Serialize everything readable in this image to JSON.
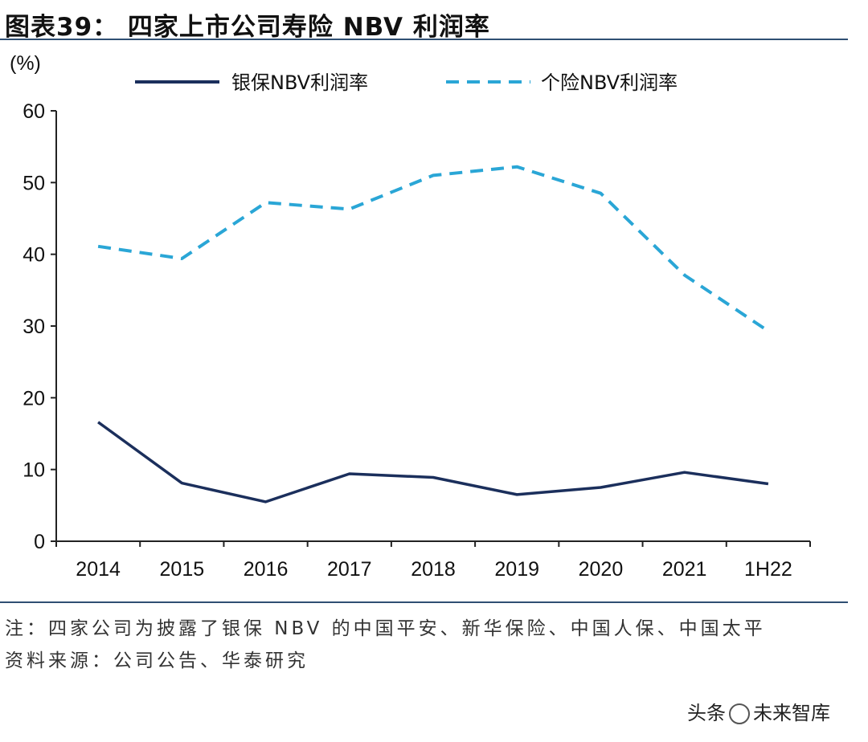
{
  "header": {
    "title": "图表39： 四家上市公司寿险 NBV 利润率"
  },
  "chart_data": {
    "type": "line",
    "title": "四家上市公司寿险 NBV 利润率",
    "ylabel": "(%)",
    "xlabel": "",
    "categories": [
      "2014",
      "2015",
      "2016",
      "2017",
      "2018",
      "2019",
      "2020",
      "2021",
      "1H22"
    ],
    "ylim": [
      0,
      60
    ],
    "yticks": [
      "0",
      "10",
      "20",
      "30",
      "40",
      "50",
      "60"
    ],
    "grid": false,
    "legend_position": "top",
    "series": [
      {
        "name": "银保NBV利润率",
        "style": "solid",
        "color": "#1b2f5c",
        "values": [
          16.6,
          8.1,
          5.5,
          9.4,
          8.9,
          6.5,
          7.5,
          9.6,
          8.0
        ]
      },
      {
        "name": "个险NBV利润率",
        "style": "dashed",
        "color": "#2aa6d6",
        "values": [
          41.1,
          39.4,
          47.2,
          46.3,
          51.0,
          52.2,
          48.5,
          37.1,
          29.3
        ]
      }
    ]
  },
  "footer": {
    "note": "注：四家公司为披露了银保 NBV 的中国平安、新华保险、中国人保、中国太平",
    "source": "资料来源：公司公告、华泰研究",
    "watermark_left": "头条",
    "watermark_right": "未来智库"
  }
}
